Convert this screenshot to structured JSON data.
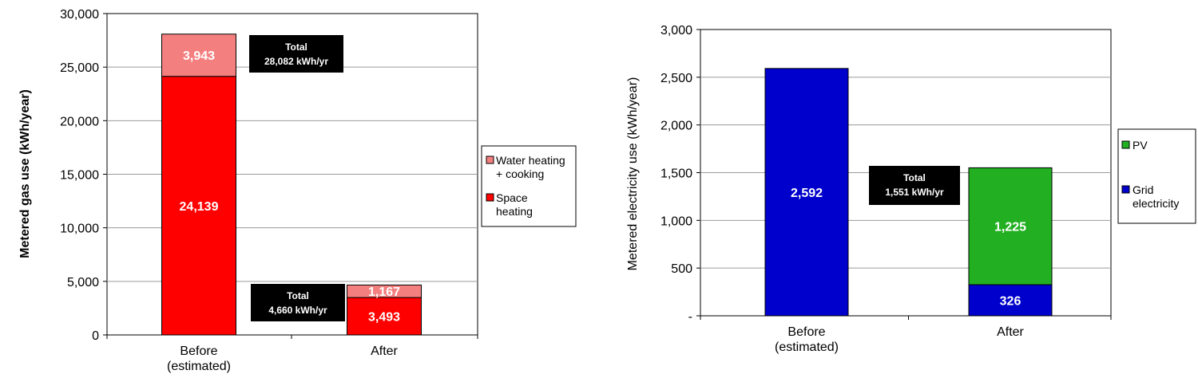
{
  "chart_data": [
    {
      "type": "bar",
      "stacked": true,
      "categories": [
        "Before\n(estimated)",
        "After"
      ],
      "series": [
        {
          "name": "Space heating",
          "values": [
            24139,
            3493
          ],
          "labels": [
            "24,139",
            "3,493"
          ],
          "color": "#ff0000"
        },
        {
          "name": "Water heating + cooking",
          "values": [
            3943,
            1167
          ],
          "labels": [
            "3,943",
            "1,167"
          ],
          "color": "#f47f7f"
        }
      ],
      "legend_entries": [
        {
          "label": "Water heating\n+ cooking",
          "color": "#f47f7f"
        },
        {
          "label": "Space\nheating",
          "color": "#ff0000"
        }
      ],
      "totals": [
        {
          "line1": "Total",
          "line2": "28,082 kWh/yr"
        },
        {
          "line1": "Total",
          "line2": "4,660 kWh/yr"
        }
      ],
      "ylabel": "Metered gas use (kWh/year)",
      "xlabel": "",
      "ylim": [
        0,
        30000
      ],
      "yticks": [
        0,
        5000,
        10000,
        15000,
        20000,
        25000,
        30000
      ],
      "ytick_labels": [
        "0",
        "5,000",
        "10,000",
        "15,000",
        "20,000",
        "25,000",
        "30,000"
      ],
      "grid": true,
      "legend_position": "right"
    },
    {
      "type": "bar",
      "stacked": true,
      "categories": [
        "Before\n(estimated)",
        "After"
      ],
      "series": [
        {
          "name": "Grid electricity",
          "values": [
            2592,
            326
          ],
          "labels": [
            "2,592",
            "326"
          ],
          "color": "#0000cc"
        },
        {
          "name": "PV",
          "values": [
            0,
            1225
          ],
          "labels": [
            "",
            "1,225"
          ],
          "color": "#22b022"
        }
      ],
      "legend_entries": [
        {
          "label": "PV",
          "color": "#22b022"
        },
        {
          "label": "Grid\nelectricity",
          "color": "#0000cc"
        }
      ],
      "totals": [
        {
          "line1": "Total",
          "line2": "1,551 kWh/yr"
        }
      ],
      "ylabel": "Metered electricity use (kWh/year)",
      "xlabel": "",
      "ylim": [
        0,
        3000
      ],
      "yticks": [
        0,
        500,
        1000,
        1500,
        2000,
        2500,
        3000
      ],
      "ytick_labels": [
        "-",
        "500",
        "1,000",
        "1,500",
        "2,000",
        "2,500",
        "3,000"
      ],
      "grid": true,
      "legend_position": "right"
    }
  ]
}
